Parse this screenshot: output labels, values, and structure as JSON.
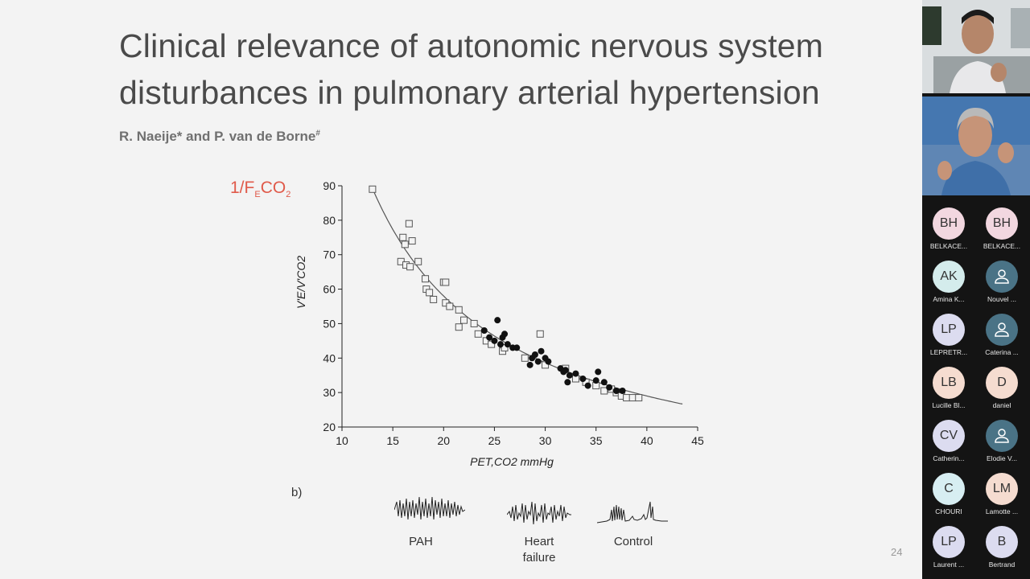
{
  "slide": {
    "title": "Clinical relevance of autonomic nervous system disturbances in pulmonary arterial hypertension",
    "authors": "R. Naeije* and P. van de Borne",
    "authors_sup": "#",
    "fe_label_main": "1/F",
    "fe_label_sub": "E",
    "fe_label_end": "CO",
    "fe_label_sub2": "2",
    "panel_b": "b)",
    "traces": [
      {
        "label_line1": "PAH",
        "label_line2": ""
      },
      {
        "label_line1": "Heart",
        "label_line2": "failure"
      },
      {
        "label_line1": "Control",
        "label_line2": ""
      }
    ],
    "slide_number": "24",
    "colors": {
      "title": "#4a4a4a",
      "accent": "#e05a4a"
    }
  },
  "chart_data": {
    "type": "scatter",
    "xlabel": "PET,CO2 mmHg",
    "ylabel": "V'E/V'CO2",
    "xlim": [
      10,
      45
    ],
    "ylim": [
      20,
      90
    ],
    "xticks": [
      10,
      15,
      20,
      25,
      30,
      35,
      40,
      45
    ],
    "yticks": [
      20,
      30,
      40,
      50,
      60,
      70,
      80,
      90
    ],
    "grid": false,
    "series": [
      {
        "marker": "open-square",
        "points": [
          [
            13,
            89
          ],
          [
            16,
            75
          ],
          [
            16.2,
            73
          ],
          [
            16.6,
            79
          ],
          [
            16.9,
            74
          ],
          [
            15.8,
            68
          ],
          [
            16.3,
            67
          ],
          [
            16.7,
            66.5
          ],
          [
            17.5,
            68
          ],
          [
            18.2,
            63
          ],
          [
            18.3,
            60
          ],
          [
            18.6,
            59
          ],
          [
            19,
            57
          ],
          [
            20,
            62
          ],
          [
            20.2,
            62
          ],
          [
            20.2,
            56
          ],
          [
            20.6,
            55
          ],
          [
            21.5,
            54
          ],
          [
            21.5,
            49
          ],
          [
            22,
            51
          ],
          [
            23,
            50
          ],
          [
            23.4,
            47
          ],
          [
            24.2,
            45
          ],
          [
            24.7,
            44
          ],
          [
            25.8,
            42
          ],
          [
            26,
            43
          ],
          [
            28,
            40
          ],
          [
            29.5,
            47
          ],
          [
            30,
            38
          ],
          [
            32,
            37
          ],
          [
            33,
            34
          ],
          [
            34,
            33
          ],
          [
            35,
            32
          ],
          [
            35.8,
            30.5
          ],
          [
            36.5,
            31
          ],
          [
            37,
            30
          ],
          [
            37.5,
            29
          ],
          [
            38,
            28.5
          ],
          [
            38.6,
            28.5
          ],
          [
            39.2,
            28.5
          ]
        ]
      },
      {
        "marker": "filled-circle",
        "points": [
          [
            24,
            48
          ],
          [
            24.5,
            46
          ],
          [
            25,
            45
          ],
          [
            25.3,
            51
          ],
          [
            25.6,
            44
          ],
          [
            25.8,
            46
          ],
          [
            26,
            47
          ],
          [
            26.3,
            44
          ],
          [
            26.8,
            43
          ],
          [
            27.2,
            43
          ],
          [
            28.5,
            38
          ],
          [
            28.7,
            40
          ],
          [
            29,
            41
          ],
          [
            29.3,
            39
          ],
          [
            29.6,
            42
          ],
          [
            30,
            40
          ],
          [
            30.3,
            39
          ],
          [
            31.5,
            37
          ],
          [
            31.8,
            36
          ],
          [
            32,
            36.5
          ],
          [
            32.2,
            33
          ],
          [
            32.4,
            35
          ],
          [
            33,
            35.5
          ],
          [
            33.7,
            34
          ],
          [
            34.2,
            32
          ],
          [
            35,
            33.5
          ],
          [
            35.2,
            36
          ],
          [
            35.8,
            33
          ],
          [
            36.3,
            31.5
          ],
          [
            37,
            30.5
          ],
          [
            37.6,
            30.5
          ]
        ]
      }
    ],
    "fit_curve": "hyperbolic"
  },
  "participants": {
    "videos": [
      {
        "name": "camera-feed-1"
      },
      {
        "name": "camera-feed-2"
      }
    ],
    "list": [
      {
        "initials": "BH",
        "name": "BELKACE...",
        "color": "pink"
      },
      {
        "initials": "BH",
        "name": "BELKACE...",
        "color": "pink"
      },
      {
        "initials": "AK",
        "name": "Amina K...",
        "color": "mint"
      },
      {
        "initials": "",
        "name": "Nouvel ...",
        "color": "teal"
      },
      {
        "initials": "LP",
        "name": "LEPRETR...",
        "color": "lav"
      },
      {
        "initials": "",
        "name": "Caterina ...",
        "color": "teal"
      },
      {
        "initials": "LB",
        "name": "Lucille Bl...",
        "color": "peach"
      },
      {
        "initials": "D",
        "name": "daniel",
        "color": "peach"
      },
      {
        "initials": "CV",
        "name": "Catherin...",
        "color": "lav"
      },
      {
        "initials": "",
        "name": "Elodie V...",
        "color": "teal"
      },
      {
        "initials": "C",
        "name": "CHOURI",
        "color": "cyan"
      },
      {
        "initials": "LM",
        "name": "Lamotte ...",
        "color": "peach"
      },
      {
        "initials": "LP",
        "name": "Laurent ...",
        "color": "lav"
      },
      {
        "initials": "B",
        "name": "Bertrand",
        "color": "lav"
      }
    ]
  }
}
